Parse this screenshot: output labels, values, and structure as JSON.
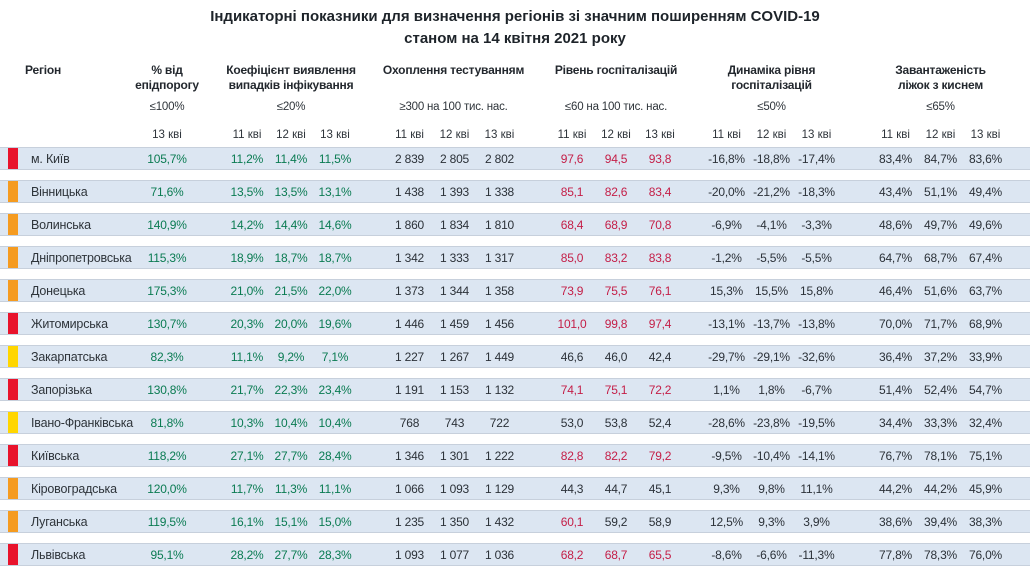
{
  "title": {
    "line1": "Індикаторні показники для визначення регіонів зі значним поширенням COVID-19",
    "line2": "станом на 14 квітня 2021 року"
  },
  "columns": {
    "region_label": "Регіон",
    "groups": [
      {
        "name": "% від\nепідпорогу",
        "threshold": "≤100%",
        "dates": [
          "13 кві"
        ]
      },
      {
        "name": "Коефіцієнт виявлення\nвипадків інфікування",
        "threshold": "≤20%",
        "dates": [
          "11 кві",
          "12 кві",
          "13 кві"
        ]
      },
      {
        "name": "Охоплення тестуванням",
        "threshold": "≥300 на 100 тис. нас.",
        "dates": [
          "11 кві",
          "12 кві",
          "13 кві"
        ]
      },
      {
        "name": "Рівень госпіталізацій",
        "threshold": "≤60 на 100 тис. нас.",
        "dates": [
          "11 кві",
          "12 кві",
          "13 кві"
        ]
      },
      {
        "name": "Динаміка рівня\nгоспіталізацій",
        "threshold": "≤50%",
        "dates": [
          "11 кві",
          "12 кві",
          "13 кві"
        ]
      },
      {
        "name": "Завантаженість\nліжок з киснем",
        "threshold": "≤65%",
        "dates": [
          "11 кві",
          "12 кві",
          "13 кві"
        ]
      }
    ]
  },
  "thresholds": {
    "hosp_red_above": 60
  },
  "rows": [
    {
      "region": "м. Київ",
      "marker": "red",
      "epid": "105,7%",
      "coef": [
        "11,2%",
        "11,4%",
        "11,5%"
      ],
      "test": [
        "2 839",
        "2 805",
        "2 802"
      ],
      "hosp": [
        "97,6",
        "94,5",
        "93,8"
      ],
      "dyn": [
        "-16,8%",
        "-18,8%",
        "-17,4%"
      ],
      "oxy": [
        "83,4%",
        "84,7%",
        "83,6%"
      ]
    },
    {
      "region": "Вінницька",
      "marker": "orange",
      "epid": "71,6%",
      "coef": [
        "13,5%",
        "13,5%",
        "13,1%"
      ],
      "test": [
        "1 438",
        "1 393",
        "1 338"
      ],
      "hosp": [
        "85,1",
        "82,6",
        "83,4"
      ],
      "dyn": [
        "-20,0%",
        "-21,2%",
        "-18,3%"
      ],
      "oxy": [
        "43,4%",
        "51,1%",
        "49,4%"
      ]
    },
    {
      "region": "Волинська",
      "marker": "orange",
      "epid": "140,9%",
      "coef": [
        "14,2%",
        "14,4%",
        "14,6%"
      ],
      "test": [
        "1 860",
        "1 834",
        "1 810"
      ],
      "hosp": [
        "68,4",
        "68,9",
        "70,8"
      ],
      "dyn": [
        "-6,9%",
        "-4,1%",
        "-3,3%"
      ],
      "oxy": [
        "48,6%",
        "49,7%",
        "49,6%"
      ]
    },
    {
      "region": "Дніпропетровська",
      "marker": "orange",
      "epid": "115,3%",
      "coef": [
        "18,9%",
        "18,7%",
        "18,7%"
      ],
      "test": [
        "1 342",
        "1 333",
        "1 317"
      ],
      "hosp": [
        "85,0",
        "83,2",
        "83,8"
      ],
      "dyn": [
        "-1,2%",
        "-5,5%",
        "-5,5%"
      ],
      "oxy": [
        "64,7%",
        "68,7%",
        "67,4%"
      ]
    },
    {
      "region": "Донецька",
      "marker": "orange",
      "epid": "175,3%",
      "coef": [
        "21,0%",
        "21,5%",
        "22,0%"
      ],
      "test": [
        "1 373",
        "1 344",
        "1 358"
      ],
      "hosp": [
        "73,9",
        "75,5",
        "76,1"
      ],
      "dyn": [
        "15,3%",
        "15,5%",
        "15,8%"
      ],
      "oxy": [
        "46,4%",
        "51,6%",
        "63,7%"
      ]
    },
    {
      "region": "Житомирська",
      "marker": "red",
      "epid": "130,7%",
      "coef": [
        "20,3%",
        "20,0%",
        "19,6%"
      ],
      "test": [
        "1 446",
        "1 459",
        "1 456"
      ],
      "hosp": [
        "101,0",
        "99,8",
        "97,4"
      ],
      "dyn": [
        "-13,1%",
        "-13,7%",
        "-13,8%"
      ],
      "oxy": [
        "70,0%",
        "71,7%",
        "68,9%"
      ]
    },
    {
      "region": "Закарпатська",
      "marker": "yellow",
      "epid": "82,3%",
      "coef": [
        "11,1%",
        "9,2%",
        "7,1%"
      ],
      "test": [
        "1 227",
        "1 267",
        "1 449"
      ],
      "hosp": [
        "46,6",
        "46,0",
        "42,4"
      ],
      "dyn": [
        "-29,7%",
        "-29,1%",
        "-32,6%"
      ],
      "oxy": [
        "36,4%",
        "37,2%",
        "33,9%"
      ]
    },
    {
      "region": "Запорізька",
      "marker": "red",
      "epid": "130,8%",
      "coef": [
        "21,7%",
        "22,3%",
        "23,4%"
      ],
      "test": [
        "1 191",
        "1 153",
        "1 132"
      ],
      "hosp": [
        "74,1",
        "75,1",
        "72,2"
      ],
      "dyn": [
        "1,1%",
        "1,8%",
        "-6,7%"
      ],
      "oxy": [
        "51,4%",
        "52,4%",
        "54,7%"
      ]
    },
    {
      "region": "Івано-Франківська",
      "marker": "yellow",
      "epid": "81,8%",
      "coef": [
        "10,3%",
        "10,4%",
        "10,4%"
      ],
      "test": [
        "768",
        "743",
        "722"
      ],
      "hosp": [
        "53,0",
        "53,8",
        "52,4"
      ],
      "dyn": [
        "-28,6%",
        "-23,8%",
        "-19,5%"
      ],
      "oxy": [
        "34,4%",
        "33,3%",
        "32,4%"
      ]
    },
    {
      "region": "Київська",
      "marker": "red",
      "epid": "118,2%",
      "coef": [
        "27,1%",
        "27,7%",
        "28,4%"
      ],
      "test": [
        "1 346",
        "1 301",
        "1 222"
      ],
      "hosp": [
        "82,8",
        "82,2",
        "79,2"
      ],
      "dyn": [
        "-9,5%",
        "-10,4%",
        "-14,1%"
      ],
      "oxy": [
        "76,7%",
        "78,1%",
        "75,1%"
      ]
    },
    {
      "region": "Кіровоградська",
      "marker": "orange",
      "epid": "120,0%",
      "coef": [
        "11,7%",
        "11,3%",
        "11,1%"
      ],
      "test": [
        "1 066",
        "1 093",
        "1 129"
      ],
      "hosp": [
        "44,3",
        "44,7",
        "45,1"
      ],
      "dyn": [
        "9,3%",
        "9,8%",
        "11,1%"
      ],
      "oxy": [
        "44,2%",
        "44,2%",
        "45,9%"
      ]
    },
    {
      "region": "Луганська",
      "marker": "orange",
      "epid": "119,5%",
      "coef": [
        "16,1%",
        "15,1%",
        "15,0%"
      ],
      "test": [
        "1 235",
        "1 350",
        "1 432"
      ],
      "hosp": [
        "60,1",
        "59,2",
        "58,9"
      ],
      "dyn": [
        "12,5%",
        "9,3%",
        "3,9%"
      ],
      "oxy": [
        "38,6%",
        "39,4%",
        "38,3%"
      ]
    },
    {
      "region": "Львівська",
      "marker": "red",
      "epid": "95,1%",
      "coef": [
        "28,2%",
        "27,7%",
        "28,3%"
      ],
      "test": [
        "1 093",
        "1 077",
        "1 036"
      ],
      "hosp": [
        "68,2",
        "68,7",
        "65,5"
      ],
      "dyn": [
        "-8,6%",
        "-6,6%",
        "-11,3%"
      ],
      "oxy": [
        "77,8%",
        "78,3%",
        "76,0%"
      ]
    }
  ],
  "colors": {
    "value_green": "#0a7b52",
    "value_red": "#c41e47",
    "text_dark": "#2b3138",
    "row_band": "#dce6f2",
    "row_border": "#c7d0dc",
    "markers": {
      "red": "#e8132c",
      "orange": "#f59b20",
      "yellow": "#ffd600"
    }
  }
}
